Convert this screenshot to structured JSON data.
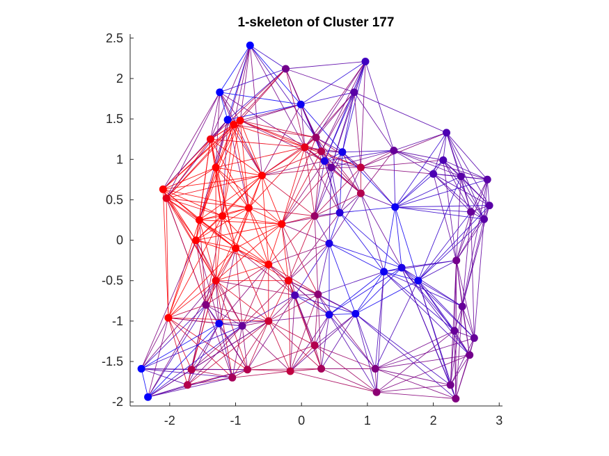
{
  "chart_data": {
    "type": "scatter",
    "title": "1-skeleton of Cluster 177",
    "xlabel": "",
    "ylabel": "",
    "xlim": [
      -2.6,
      3.05
    ],
    "ylim": [
      -2.05,
      2.55
    ],
    "xticks": [
      -2,
      -1,
      0,
      1,
      2,
      3
    ],
    "xtick_labels": [
      "-2",
      "-1",
      "0",
      "1",
      "2",
      "3"
    ],
    "yticks": [
      -2,
      -1.5,
      -1,
      -0.5,
      0,
      0.5,
      1,
      1.5,
      2,
      2.5
    ],
    "ytick_labels": [
      "-2",
      "-1.5",
      "-1",
      "-0.5",
      "0",
      "0.5",
      "1",
      "1.5",
      "2",
      "2.5"
    ],
    "grid": false,
    "box": false,
    "aspect": "equal",
    "color_scale": {
      "low": "#0000ff",
      "high": "#ff0000",
      "description": "vertex color interpolates from blue (0) to red (1)"
    },
    "vertices": [
      {
        "x": -0.78,
        "y": 2.41,
        "c": 0.0
      },
      {
        "x": -1.24,
        "y": 1.83,
        "c": 0.0
      },
      {
        "x": -1.12,
        "y": 1.49,
        "c": 0.02
      },
      {
        "x": -0.01,
        "y": 1.68,
        "c": 0.05
      },
      {
        "x": -0.93,
        "y": 1.48,
        "c": 1.0
      },
      {
        "x": -1.03,
        "y": 1.43,
        "c": 1.0
      },
      {
        "x": -1.38,
        "y": 1.25,
        "c": 0.95
      },
      {
        "x": -2.1,
        "y": 0.63,
        "c": 1.0
      },
      {
        "x": -2.05,
        "y": 0.52,
        "c": 0.9
      },
      {
        "x": -1.55,
        "y": 0.25,
        "c": 1.0
      },
      {
        "x": -1.3,
        "y": 0.9,
        "c": 1.0
      },
      {
        "x": -1.2,
        "y": 0.3,
        "c": 1.0
      },
      {
        "x": -1.6,
        "y": 0.0,
        "c": 1.0
      },
      {
        "x": -1.0,
        "y": -0.1,
        "c": 1.0
      },
      {
        "x": -0.8,
        "y": 0.4,
        "c": 1.0
      },
      {
        "x": -0.5,
        "y": -0.3,
        "c": 1.0
      },
      {
        "x": -0.3,
        "y": 0.2,
        "c": 1.0
      },
      {
        "x": -0.6,
        "y": 0.8,
        "c": 1.0
      },
      {
        "x": -0.2,
        "y": -0.5,
        "c": 0.95
      },
      {
        "x": -1.3,
        "y": -0.5,
        "c": 0.95
      },
      {
        "x": -2.02,
        "y": -0.96,
        "c": 1.0
      },
      {
        "x": 0.05,
        "y": 1.15,
        "c": 0.9
      },
      {
        "x": 0.22,
        "y": 1.27,
        "c": 0.6
      },
      {
        "x": 0.35,
        "y": 0.98,
        "c": 0.1
      },
      {
        "x": 0.45,
        "y": 0.9,
        "c": 0.4
      },
      {
        "x": 0.62,
        "y": 1.09,
        "c": 0.08
      },
      {
        "x": 0.3,
        "y": 1.1,
        "c": 0.7
      },
      {
        "x": 0.2,
        "y": 0.3,
        "c": 0.6
      },
      {
        "x": 0.58,
        "y": 0.34,
        "c": 0.15
      },
      {
        "x": 0.42,
        "y": -0.04,
        "c": 0.1
      },
      {
        "x": -0.1,
        "y": -0.68,
        "c": 0.3
      },
      {
        "x": 0.25,
        "y": -0.67,
        "c": 0.55
      },
      {
        "x": 0.42,
        "y": -0.92,
        "c": 0.08
      },
      {
        "x": 0.82,
        "y": -0.91,
        "c": 0.05
      },
      {
        "x": 0.97,
        "y": 2.21,
        "c": 0.25
      },
      {
        "x": 0.8,
        "y": 1.83,
        "c": 0.35
      },
      {
        "x": -0.24,
        "y": 2.12,
        "c": 0.45
      },
      {
        "x": 1.4,
        "y": 1.11,
        "c": 0.4
      },
      {
        "x": 1.42,
        "y": 0.41,
        "c": 0.05
      },
      {
        "x": 1.25,
        "y": -0.39,
        "c": 0.05
      },
      {
        "x": 1.52,
        "y": -0.34,
        "c": 0.1
      },
      {
        "x": 1.77,
        "y": -0.5,
        "c": 0.05
      },
      {
        "x": 2.2,
        "y": 1.33,
        "c": 0.3
      },
      {
        "x": 2.0,
        "y": 0.82,
        "c": 0.3
      },
      {
        "x": 2.15,
        "y": 0.99,
        "c": 0.3
      },
      {
        "x": 2.42,
        "y": 0.79,
        "c": 0.35
      },
      {
        "x": 2.82,
        "y": 0.75,
        "c": 0.35
      },
      {
        "x": 2.57,
        "y": 0.35,
        "c": 0.4
      },
      {
        "x": 2.77,
        "y": 0.26,
        "c": 0.35
      },
      {
        "x": 2.85,
        "y": 0.43,
        "c": 0.35
      },
      {
        "x": 2.35,
        "y": -0.25,
        "c": 0.45
      },
      {
        "x": 2.44,
        "y": -0.82,
        "c": 0.4
      },
      {
        "x": 2.32,
        "y": -1.12,
        "c": 0.4
      },
      {
        "x": 2.62,
        "y": -1.21,
        "c": 0.4
      },
      {
        "x": 2.55,
        "y": -1.42,
        "c": 0.45
      },
      {
        "x": 2.26,
        "y": -1.79,
        "c": 0.45
      },
      {
        "x": 2.34,
        "y": -1.96,
        "c": 0.5
      },
      {
        "x": 1.12,
        "y": -1.59,
        "c": 0.5
      },
      {
        "x": 1.14,
        "y": -1.88,
        "c": 0.55
      },
      {
        "x": 0.3,
        "y": -1.59,
        "c": 0.65
      },
      {
        "x": -0.17,
        "y": -1.62,
        "c": 0.75
      },
      {
        "x": -0.82,
        "y": -1.6,
        "c": 0.7
      },
      {
        "x": -1.05,
        "y": -1.7,
        "c": 0.65
      },
      {
        "x": -1.67,
        "y": -1.6,
        "c": 0.7
      },
      {
        "x": -1.73,
        "y": -1.79,
        "c": 0.7
      },
      {
        "x": -1.45,
        "y": -0.8,
        "c": 0.5
      },
      {
        "x": -1.25,
        "y": -1.03,
        "c": 0.05
      },
      {
        "x": -0.9,
        "y": -1.06,
        "c": 0.4
      },
      {
        "x": 0.2,
        "y": -1.3,
        "c": 0.7
      },
      {
        "x": -2.43,
        "y": -1.59,
        "c": 0.0
      },
      {
        "x": -2.33,
        "y": -1.94,
        "c": 0.02
      },
      {
        "x": -0.5,
        "y": -1.0,
        "c": 0.8
      },
      {
        "x": 0.9,
        "y": 0.9,
        "c": 0.75
      },
      {
        "x": 0.9,
        "y": 0.58,
        "c": 0.7
      }
    ]
  }
}
